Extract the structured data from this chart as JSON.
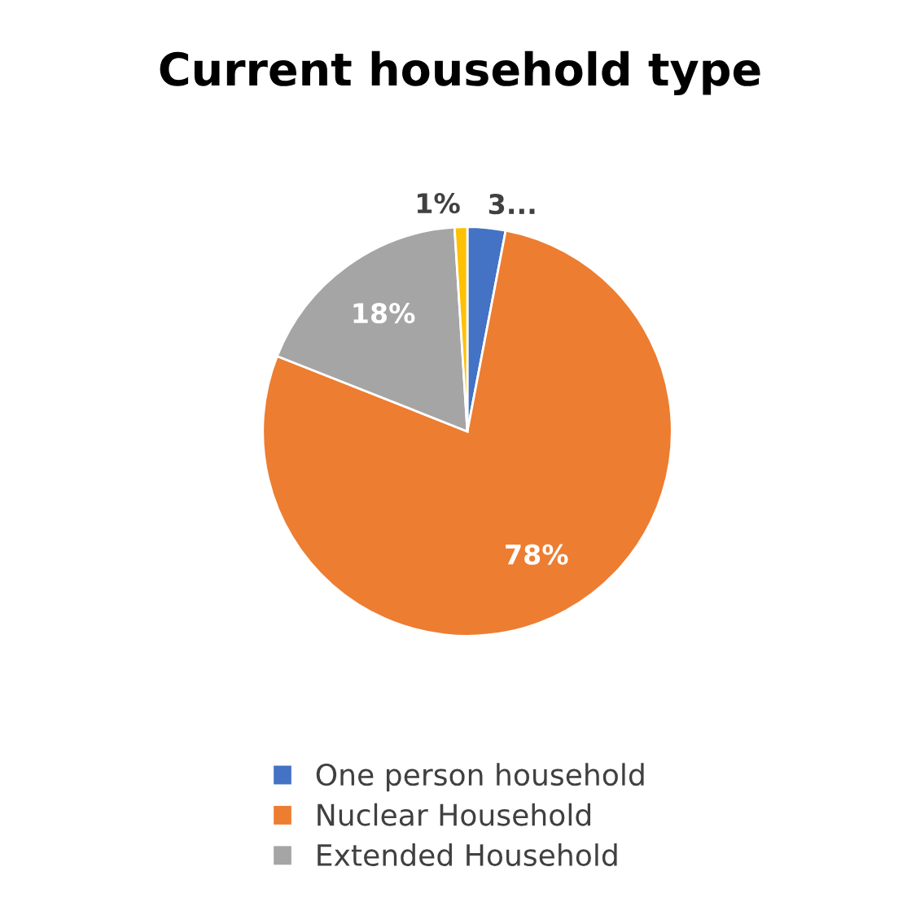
{
  "chart_data": {
    "type": "pie",
    "title": "Current household type",
    "categories": [
      "One person household",
      "Nuclear Household",
      "Extended Household",
      null
    ],
    "values": [
      3,
      78,
      18,
      1
    ],
    "colors": [
      "#4472c4",
      "#ed7d31",
      "#a5a5a5",
      "#ffc000"
    ],
    "value_labels": [
      "3...",
      "78%",
      "18%",
      "1%"
    ],
    "legend": "bottom"
  }
}
